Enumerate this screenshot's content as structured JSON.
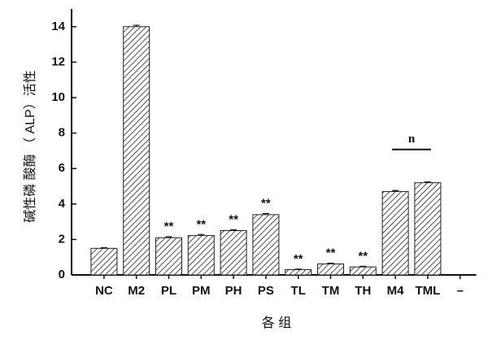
{
  "chart_data": {
    "type": "bar",
    "ylabel": "碱性磷 酸酶 （ ALP）活性",
    "xlabel": "各 组",
    "categories": [
      "NC",
      "M2",
      "PL",
      "PM",
      "PH",
      "PS",
      "TL",
      "TM",
      "TH",
      "M4",
      "TML",
      "–"
    ],
    "values": [
      1.5,
      14.0,
      2.1,
      2.22,
      2.5,
      3.4,
      0.3,
      0.62,
      0.45,
      4.7,
      5.2,
      null
    ],
    "errors": [
      0.03,
      0.08,
      0.05,
      0.06,
      0.04,
      0.06,
      0.03,
      0.04,
      0.04,
      0.06,
      0.04,
      null
    ],
    "color": "#222222",
    "ylim": [
      0,
      15
    ],
    "yticks": [
      0,
      2,
      4,
      6,
      8,
      10,
      12,
      14
    ],
    "annotations": [
      {
        "text": "**",
        "category": "PL"
      },
      {
        "text": "**",
        "category": "PM"
      },
      {
        "text": "**",
        "category": "PH"
      },
      {
        "text": "**",
        "category": "PS"
      },
      {
        "text": "**",
        "category": "TL"
      },
      {
        "text": "**",
        "category": "TM"
      },
      {
        "text": "**",
        "category": "TH"
      },
      {
        "text": "n",
        "categories": [
          "M4",
          "TML"
        ]
      }
    ]
  }
}
